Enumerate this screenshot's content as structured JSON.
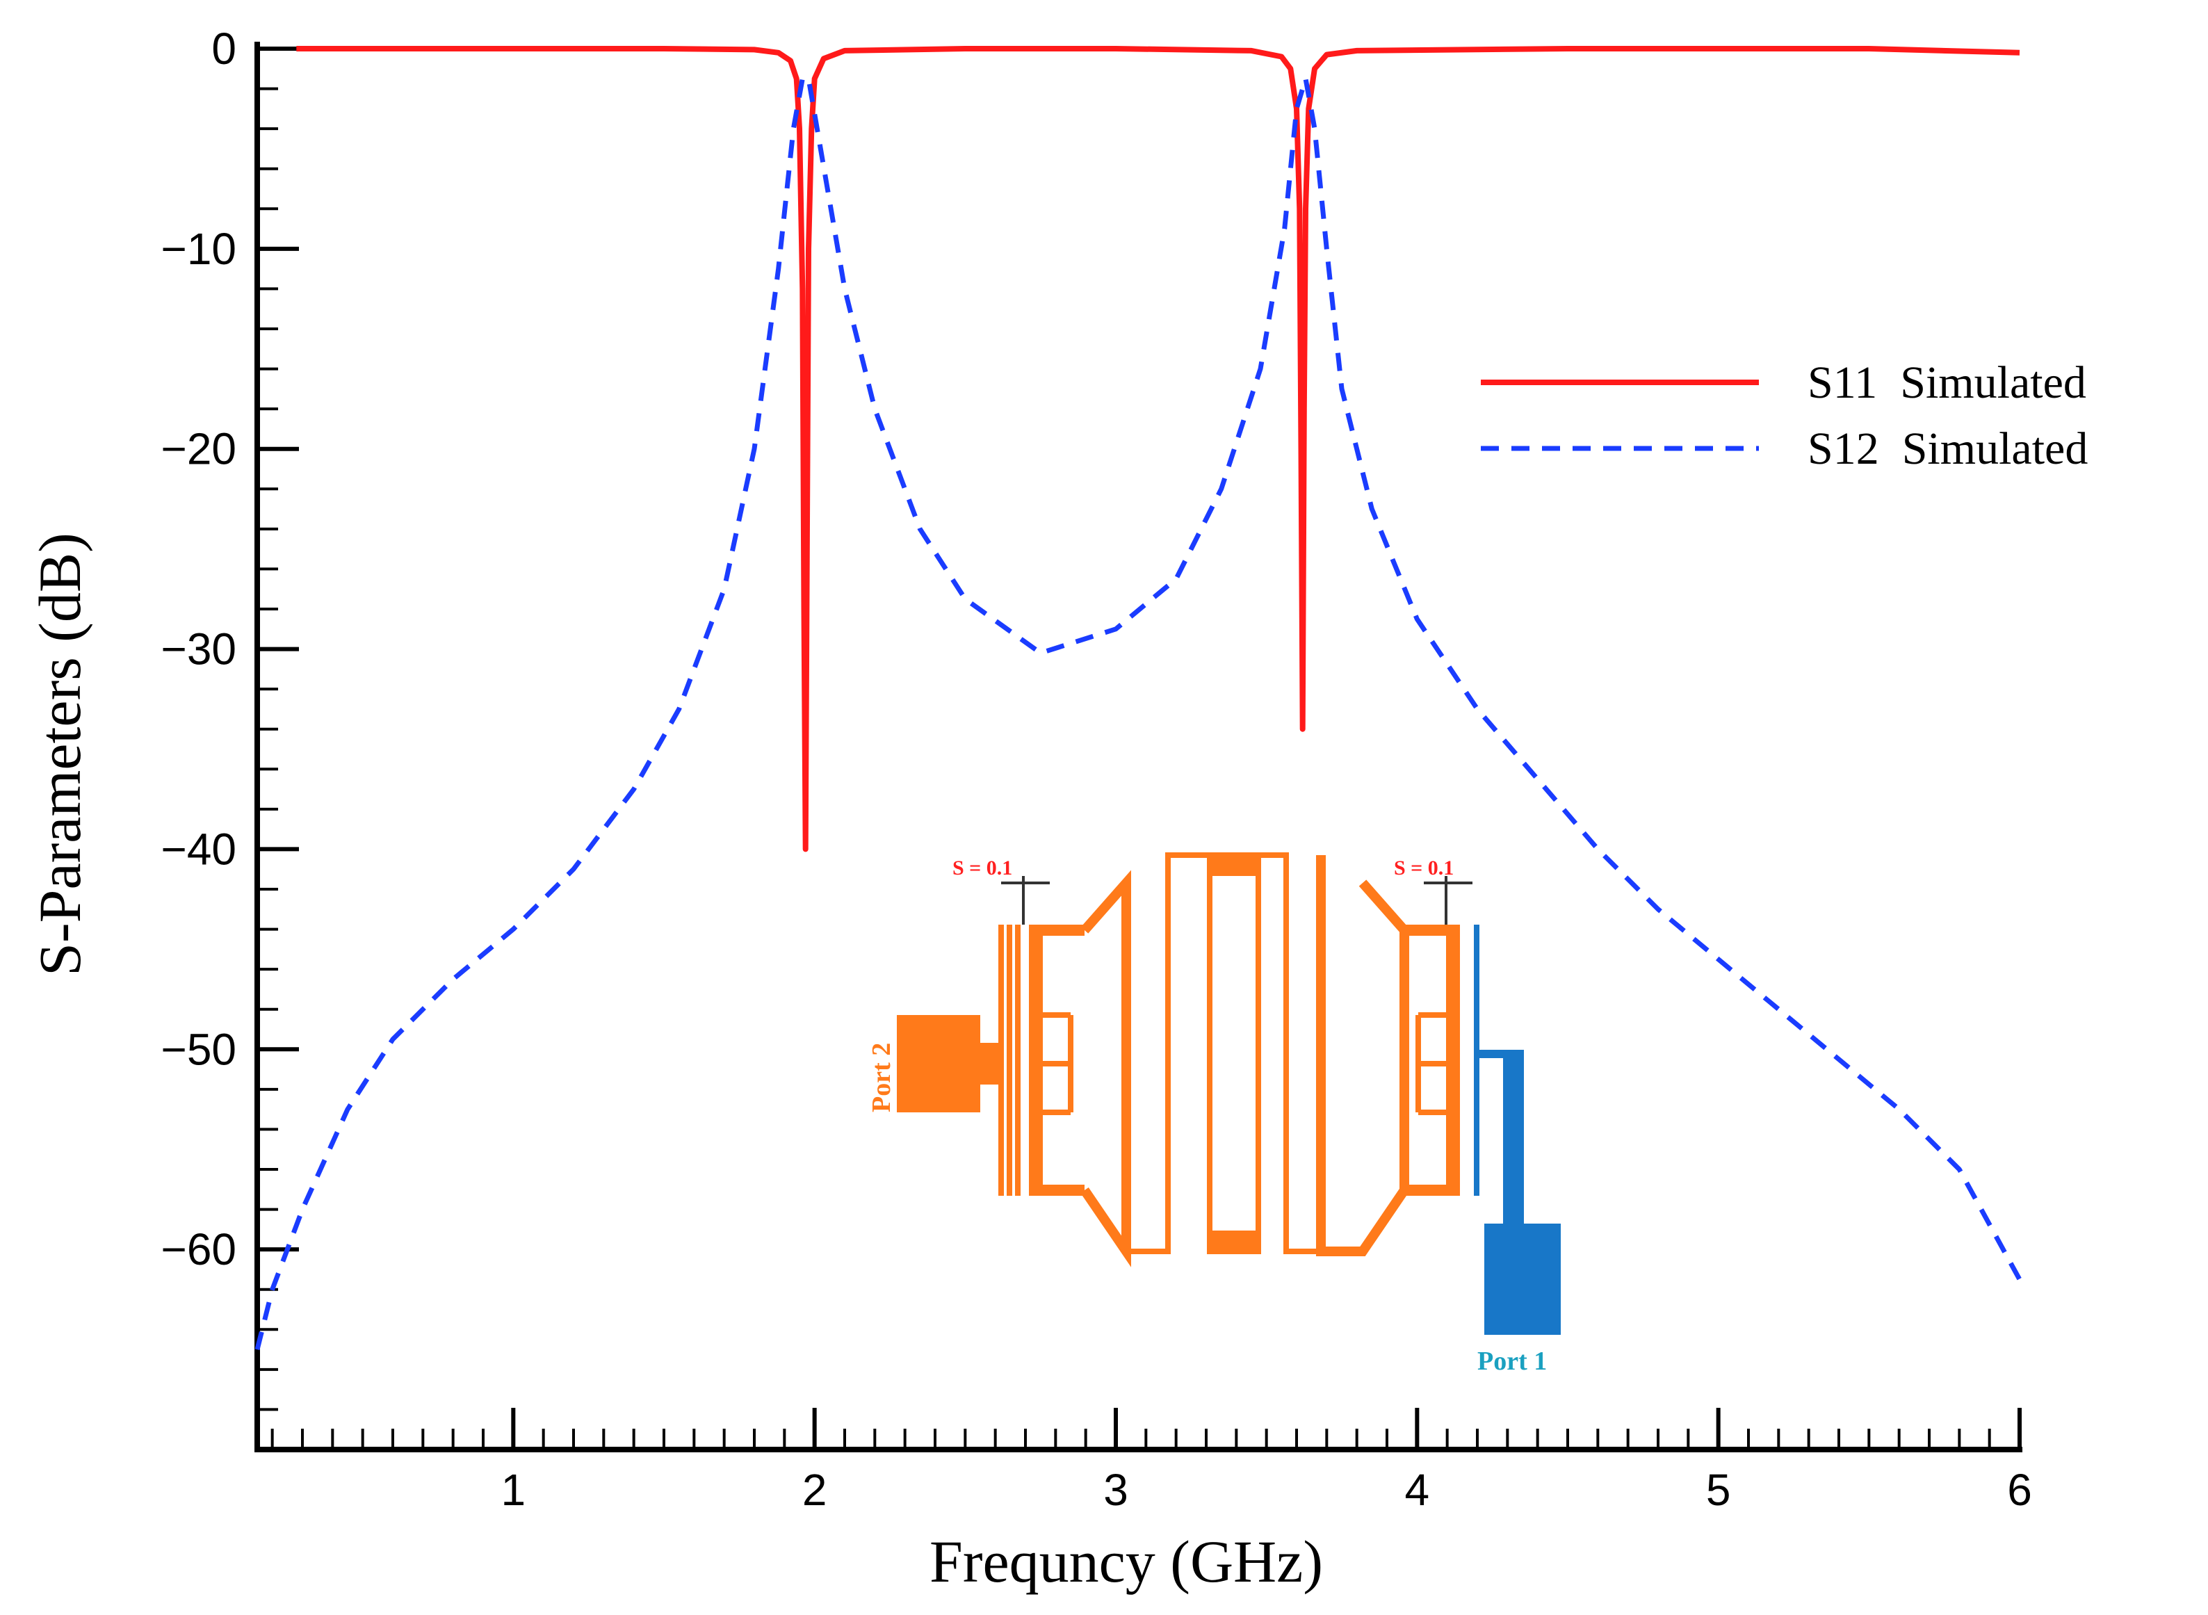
{
  "chart_data": {
    "type": "line",
    "xlabel": "Frequncy (GHz)",
    "ylabel": "S-Parameters (dB)",
    "xlim": [
      0.15,
      6.0
    ],
    "ylim": [
      -70,
      0
    ],
    "x_ticks": [
      1,
      2,
      3,
      4,
      5,
      6
    ],
    "y_ticks": [
      0,
      -10,
      -20,
      -30,
      -40,
      -50,
      -60
    ],
    "grid": false,
    "legend": {
      "position": "top-right"
    },
    "series": [
      {
        "name": "S11  Simulated",
        "style": "solid",
        "color": "#ff1a1a",
        "x": [
          0.28,
          1.0,
          1.5,
          1.8,
          1.88,
          1.92,
          1.94,
          1.95,
          1.96,
          1.965,
          1.97,
          1.975,
          1.98,
          1.99,
          2.0,
          2.03,
          2.1,
          2.5,
          3.0,
          3.45,
          3.55,
          3.58,
          3.6,
          3.61,
          3.615,
          3.62,
          3.625,
          3.63,
          3.64,
          3.66,
          3.7,
          3.8,
          4.5,
          5.5,
          6.0
        ],
        "y": [
          0,
          0,
          0,
          -0.05,
          -0.2,
          -0.6,
          -1.5,
          -4,
          -12,
          -28,
          -40,
          -25,
          -10,
          -4,
          -1.5,
          -0.5,
          -0.1,
          0,
          0,
          -0.1,
          -0.4,
          -1.0,
          -3,
          -8,
          -20,
          -34,
          -18,
          -8,
          -3,
          -1.0,
          -0.3,
          -0.1,
          0,
          0,
          -0.2
        ]
      },
      {
        "name": "S12  Simulated",
        "style": "dashed",
        "color": "#1a3cff",
        "x": [
          0.15,
          0.2,
          0.3,
          0.45,
          0.6,
          0.8,
          1.0,
          1.2,
          1.4,
          1.55,
          1.7,
          1.8,
          1.88,
          1.93,
          1.96,
          1.98,
          2.02,
          2.1,
          2.2,
          2.35,
          2.5,
          2.75,
          3.0,
          3.2,
          3.35,
          3.48,
          3.56,
          3.6,
          3.63,
          3.66,
          3.7,
          3.75,
          3.85,
          4.0,
          4.2,
          4.4,
          4.6,
          4.8,
          5.0,
          5.2,
          5.4,
          5.6,
          5.8,
          6.0
        ],
        "y": [
          -65,
          -62,
          -58,
          -53,
          -49.5,
          -46.5,
          -44,
          -41,
          -37,
          -33,
          -27,
          -20,
          -11,
          -4,
          -1.5,
          -1.5,
          -5,
          -12,
          -18,
          -24,
          -27.5,
          -30.2,
          -29,
          -26.5,
          -22,
          -16,
          -9,
          -3,
          -1.5,
          -4,
          -10,
          -17,
          -23,
          -28.5,
          -33,
          -36.5,
          -40,
          -43,
          -45.5,
          -48,
          -50.5,
          -53,
          -56,
          -61.5
        ]
      }
    ]
  },
  "inset": {
    "port2_label": "Port 2",
    "port1_label": "Port 1",
    "gap_label_left": "S = 0.1",
    "gap_label_right": "S = 0.1",
    "colors": {
      "resonator": "#ff7a1a",
      "feed": "#1877c8",
      "label_red": "#ff2020"
    }
  }
}
